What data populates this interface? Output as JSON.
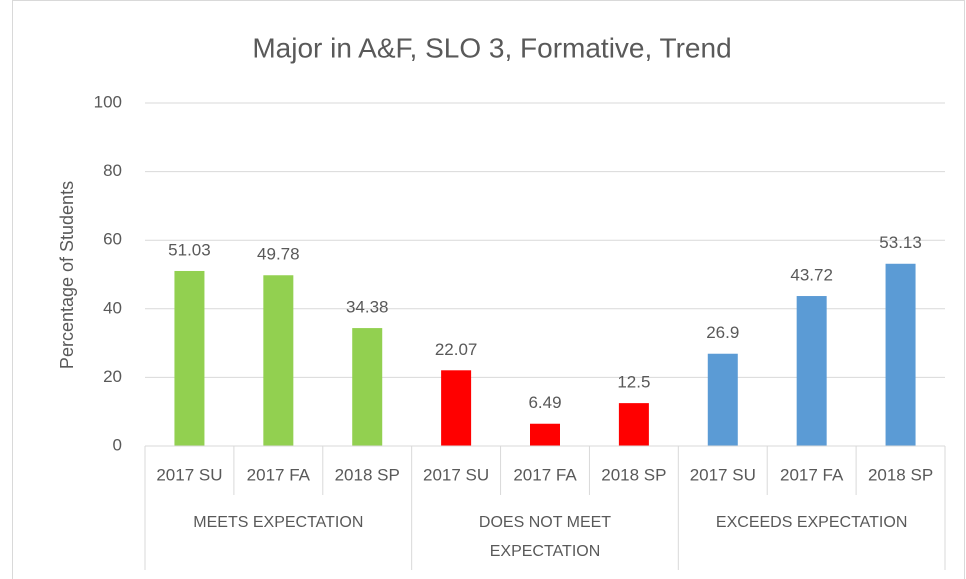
{
  "chart_data": {
    "type": "bar",
    "title": "Major in A&F, SLO 3, Formative, Trend",
    "y_label": "Percentage of Students",
    "ylim": [
      0,
      100
    ],
    "yticks": [
      0,
      20,
      40,
      60,
      80,
      100
    ],
    "grid": true,
    "groups": [
      {
        "name": "MEETS EXPECTATION",
        "color": "#92d050",
        "categories": [
          "2017 SU",
          "2017 FA",
          "2018 SP"
        ],
        "values": [
          51.03,
          49.78,
          34.38
        ]
      },
      {
        "name": "DOES NOT MEET EXPECTATION",
        "color": "#ff0000",
        "categories": [
          "2017 SU",
          "2017 FA",
          "2018 SP"
        ],
        "values": [
          22.07,
          6.49,
          12.5
        ]
      },
      {
        "name": "EXCEEDS EXPECTATION",
        "color": "#5b9bd5",
        "categories": [
          "2017 SU",
          "2017 FA",
          "2018 SP"
        ],
        "values": [
          26.9,
          43.72,
          53.13
        ]
      }
    ]
  }
}
